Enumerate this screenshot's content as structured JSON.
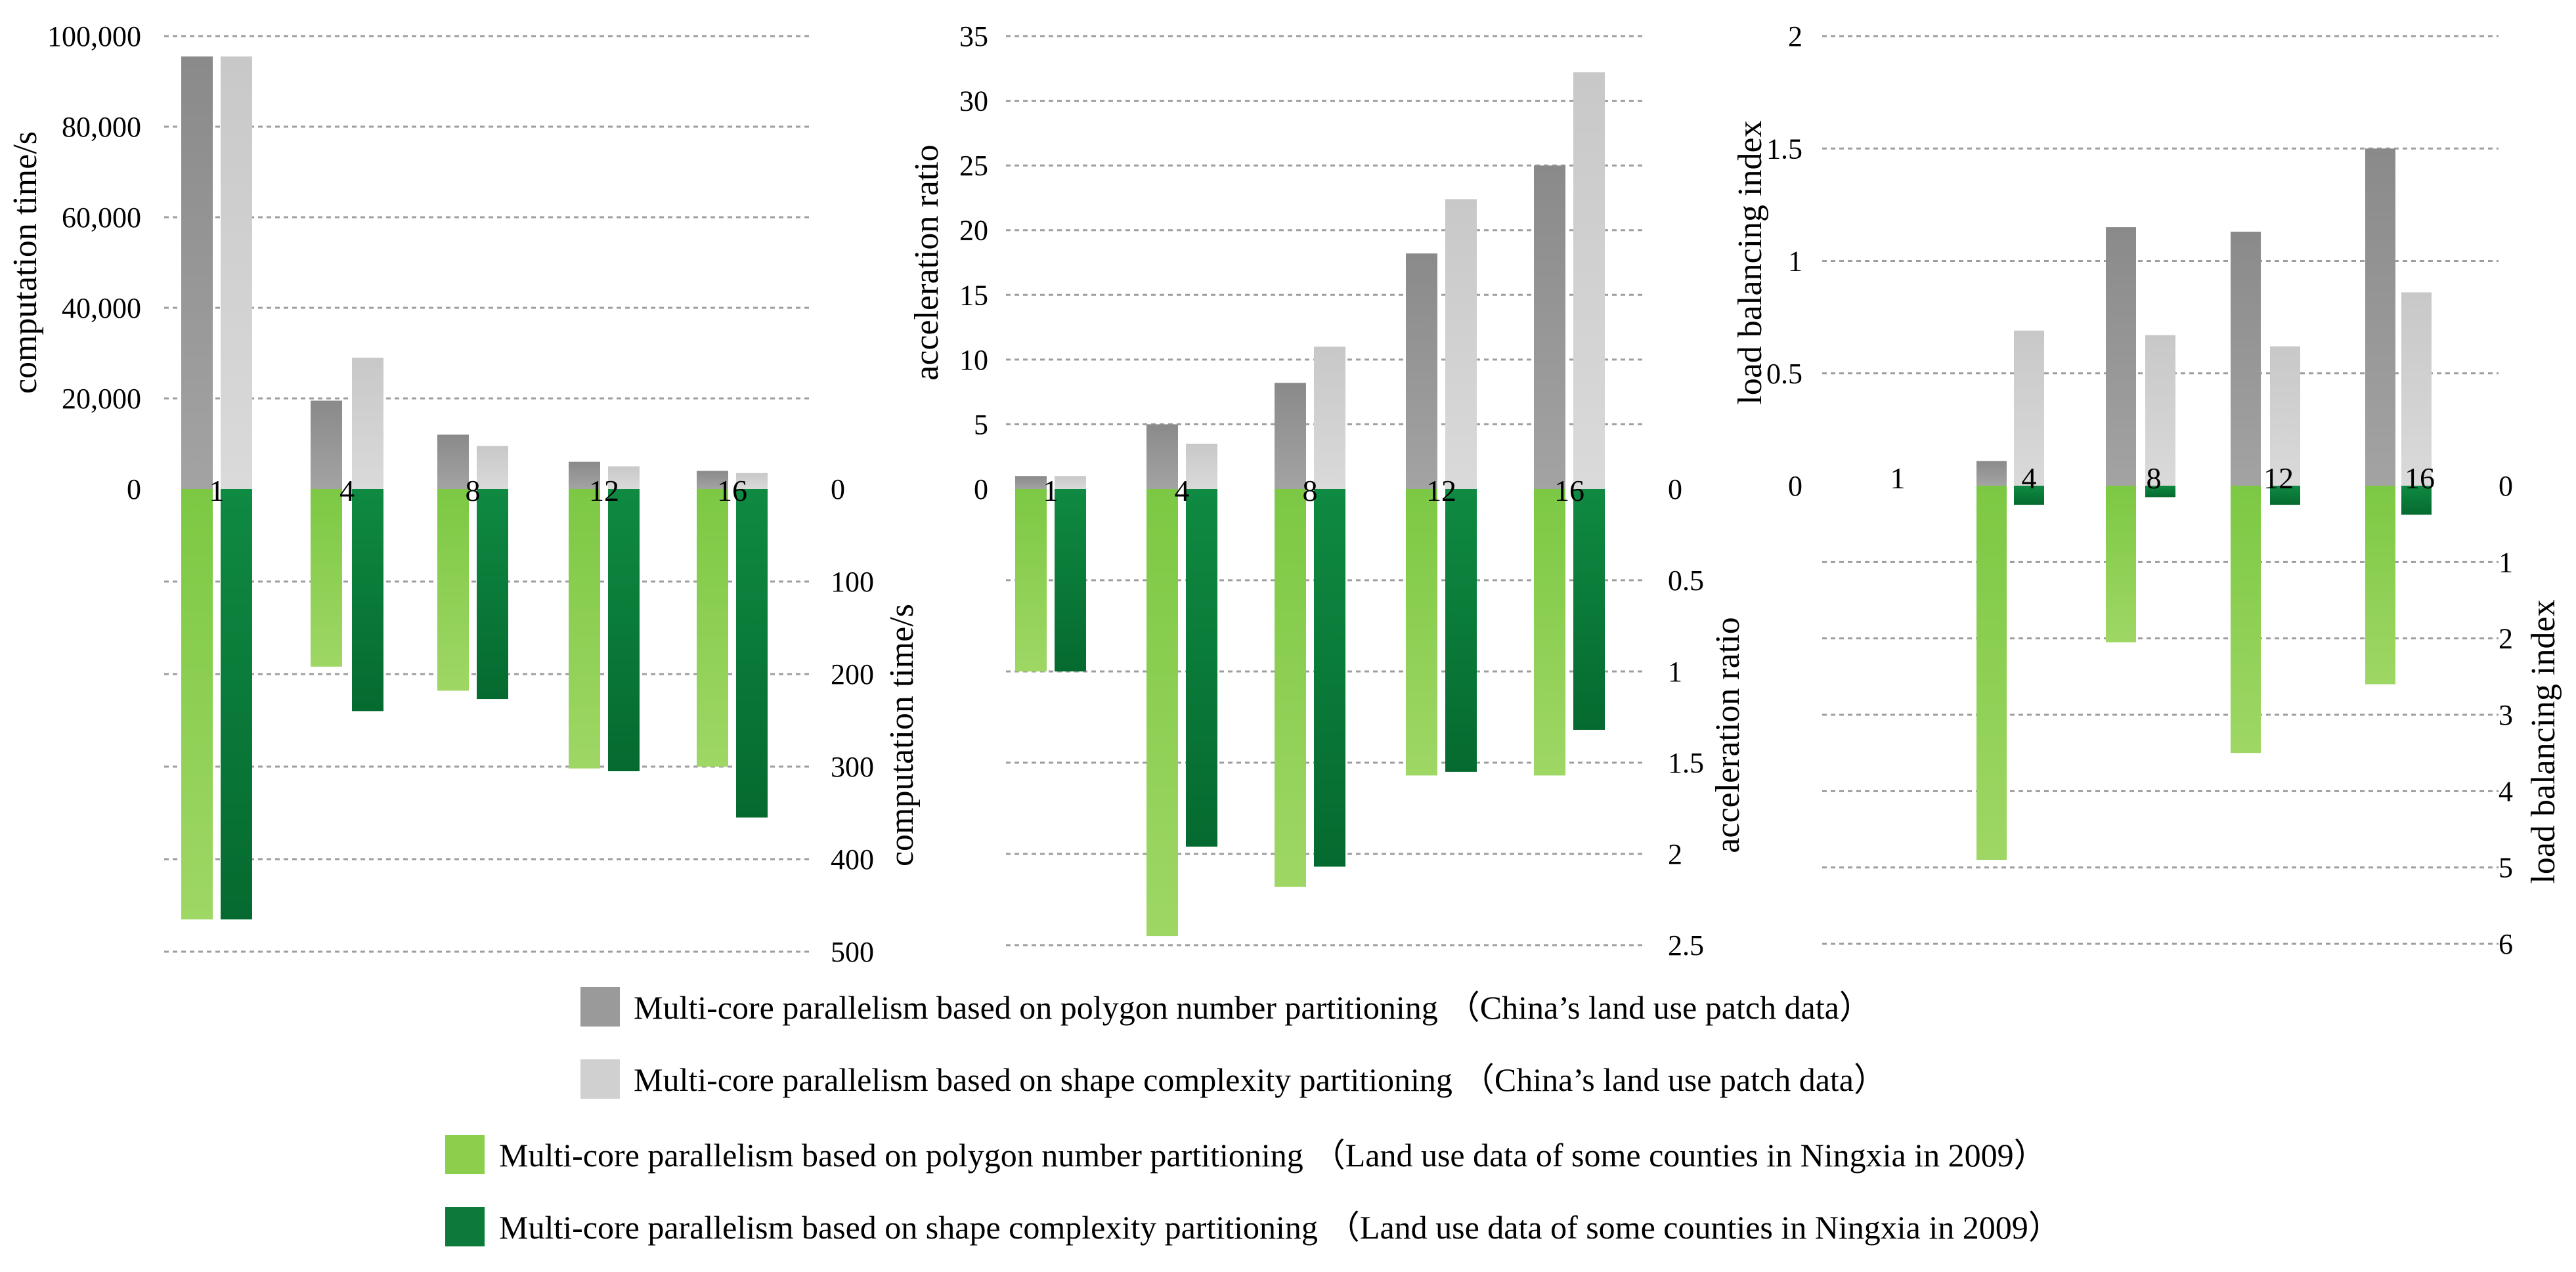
{
  "figure": {
    "legend": [
      {
        "label": "Multi-core parallelism based on polygon number partitioning",
        "dataset": "（China’s land use patch data）",
        "color": "#9a9a9a"
      },
      {
        "label": "Multi-core parallelism based on shape complexity partitioning",
        "dataset": "（China’s land use patch data）",
        "color": "#d0d0d0"
      },
      {
        "label": "Multi-core parallelism based on polygon number partitioning",
        "dataset": "（Land use data of some counties in Ningxia in 2009）",
        "color": "#8ccf4d"
      },
      {
        "label": "Multi-core parallelism based on shape complexity partitioning",
        "dataset": "（Land use data of some counties in Ningxia in 2009）",
        "color": "#0b7a3a"
      }
    ]
  },
  "chart_data": [
    {
      "type": "bar",
      "title": "",
      "categories": [
        "1",
        "4",
        "8",
        "12",
        "16"
      ],
      "top_axis": {
        "label": "computation time/s",
        "ylim": [
          0,
          100000
        ],
        "ticks": [
          "0",
          "20,000",
          "40,000",
          "60,000",
          "80,000",
          "100,000"
        ],
        "tick_values": [
          0,
          20000,
          40000,
          60000,
          80000,
          100000
        ]
      },
      "bottom_axis": {
        "label": "computation time/s",
        "ylim": [
          0,
          500
        ],
        "ticks": [
          "0",
          "100",
          "200",
          "300",
          "400",
          "500"
        ],
        "tick_values": [
          0,
          100,
          200,
          300,
          400,
          500
        ]
      },
      "series": [
        {
          "name": "Multi-core parallelism based on polygon number partitioning（China’s land use patch data）",
          "axis": "top",
          "color": "#9a9a9a",
          "values": [
            95500,
            19500,
            12000,
            6000,
            4000
          ]
        },
        {
          "name": "Multi-core parallelism based on shape complexity partitioning（China’s land use patch data）",
          "axis": "top",
          "color": "#d0d0d0",
          "values": [
            95500,
            29000,
            9500,
            5000,
            3500
          ]
        },
        {
          "name": "Multi-core parallelism based on polygon number partitioning（Land use data of some counties in Ningxia in 2009）",
          "axis": "bottom",
          "color": "#8ccf4d",
          "values": [
            465,
            192,
            218,
            302,
            300
          ]
        },
        {
          "name": "Multi-core parallelism based on shape complexity partitioning（Land use data of some counties in Ningxia in 2009）",
          "axis": "bottom",
          "color": "#0b7a3a",
          "values": [
            465,
            240,
            227,
            305,
            355
          ]
        }
      ]
    },
    {
      "type": "bar",
      "title": "",
      "categories": [
        "1",
        "4",
        "8",
        "12",
        "16"
      ],
      "top_axis": {
        "label": "acceleration ratio",
        "ylim": [
          0,
          35
        ],
        "ticks": [
          "0",
          "5",
          "10",
          "15",
          "20",
          "25",
          "30",
          "35"
        ],
        "tick_values": [
          0,
          5,
          10,
          15,
          20,
          25,
          30,
          35
        ]
      },
      "bottom_axis": {
        "label": "acceleration ratio",
        "ylim": [
          0,
          2.5
        ],
        "ticks": [
          "0",
          "0.5",
          "1",
          "1.5",
          "2",
          "2.5"
        ],
        "tick_values": [
          0,
          0.5,
          1,
          1.5,
          2,
          2.5
        ]
      },
      "series": [
        {
          "name": "Multi-core parallelism based on polygon number partitioning（China’s land use patch data）",
          "axis": "top",
          "color": "#9a9a9a",
          "values": [
            1,
            5,
            8.2,
            18.2,
            25
          ]
        },
        {
          "name": "Multi-core parallelism based on shape complexity partitioning（China’s land use patch data）",
          "axis": "top",
          "color": "#d0d0d0",
          "values": [
            1,
            3.5,
            11,
            22.4,
            32.2
          ]
        },
        {
          "name": "Multi-core parallelism based on polygon number partitioning（Land use data of some counties in Ningxia in 2009）",
          "axis": "bottom",
          "color": "#8ccf4d",
          "values": [
            1,
            2.45,
            2.18,
            1.57,
            1.57
          ]
        },
        {
          "name": "Multi-core parallelism based on shape complexity partitioning（Land use data of some counties in Ningxia in 2009）",
          "axis": "bottom",
          "color": "#0b7a3a",
          "values": [
            1,
            1.96,
            2.07,
            1.55,
            1.32
          ]
        }
      ]
    },
    {
      "type": "bar",
      "title": "",
      "categories": [
        "1",
        "4",
        "8",
        "12",
        "16"
      ],
      "top_axis": {
        "label": "load balancing index",
        "ylim": [
          0,
          2
        ],
        "ticks": [
          "0",
          "0.5",
          "1",
          "1.5",
          "2"
        ],
        "tick_values": [
          0,
          0.5,
          1,
          1.5,
          2
        ]
      },
      "bottom_axis": {
        "label": "load balancing index",
        "ylim": [
          0,
          6
        ],
        "ticks": [
          "0",
          "1",
          "2",
          "3",
          "4",
          "5",
          "6"
        ],
        "tick_values": [
          0,
          1,
          2,
          3,
          4,
          5,
          6
        ]
      },
      "series": [
        {
          "name": "Multi-core parallelism based on polygon number partitioning（China’s land use patch data）",
          "axis": "top",
          "color": "#9a9a9a",
          "values": [
            0,
            0.11,
            1.15,
            1.13,
            1.5
          ]
        },
        {
          "name": "Multi-core parallelism based on shape complexity partitioning（China’s land use patch data）",
          "axis": "top",
          "color": "#d0d0d0",
          "values": [
            0,
            0.69,
            0.67,
            0.62,
            0.86
          ]
        },
        {
          "name": "Multi-core parallelism based on polygon number partitioning（Land use data of some counties in Ningxia in 2009）",
          "axis": "bottom",
          "color": "#8ccf4d",
          "values": [
            0,
            4.9,
            2.05,
            3.5,
            2.6
          ]
        },
        {
          "name": "Multi-core parallelism based on shape complexity partitioning（Land use data of some counties in Ningxia in 2009）",
          "axis": "bottom",
          "color": "#0b7a3a",
          "values": [
            0,
            0.25,
            0.15,
            0.25,
            0.38
          ]
        }
      ]
    }
  ]
}
